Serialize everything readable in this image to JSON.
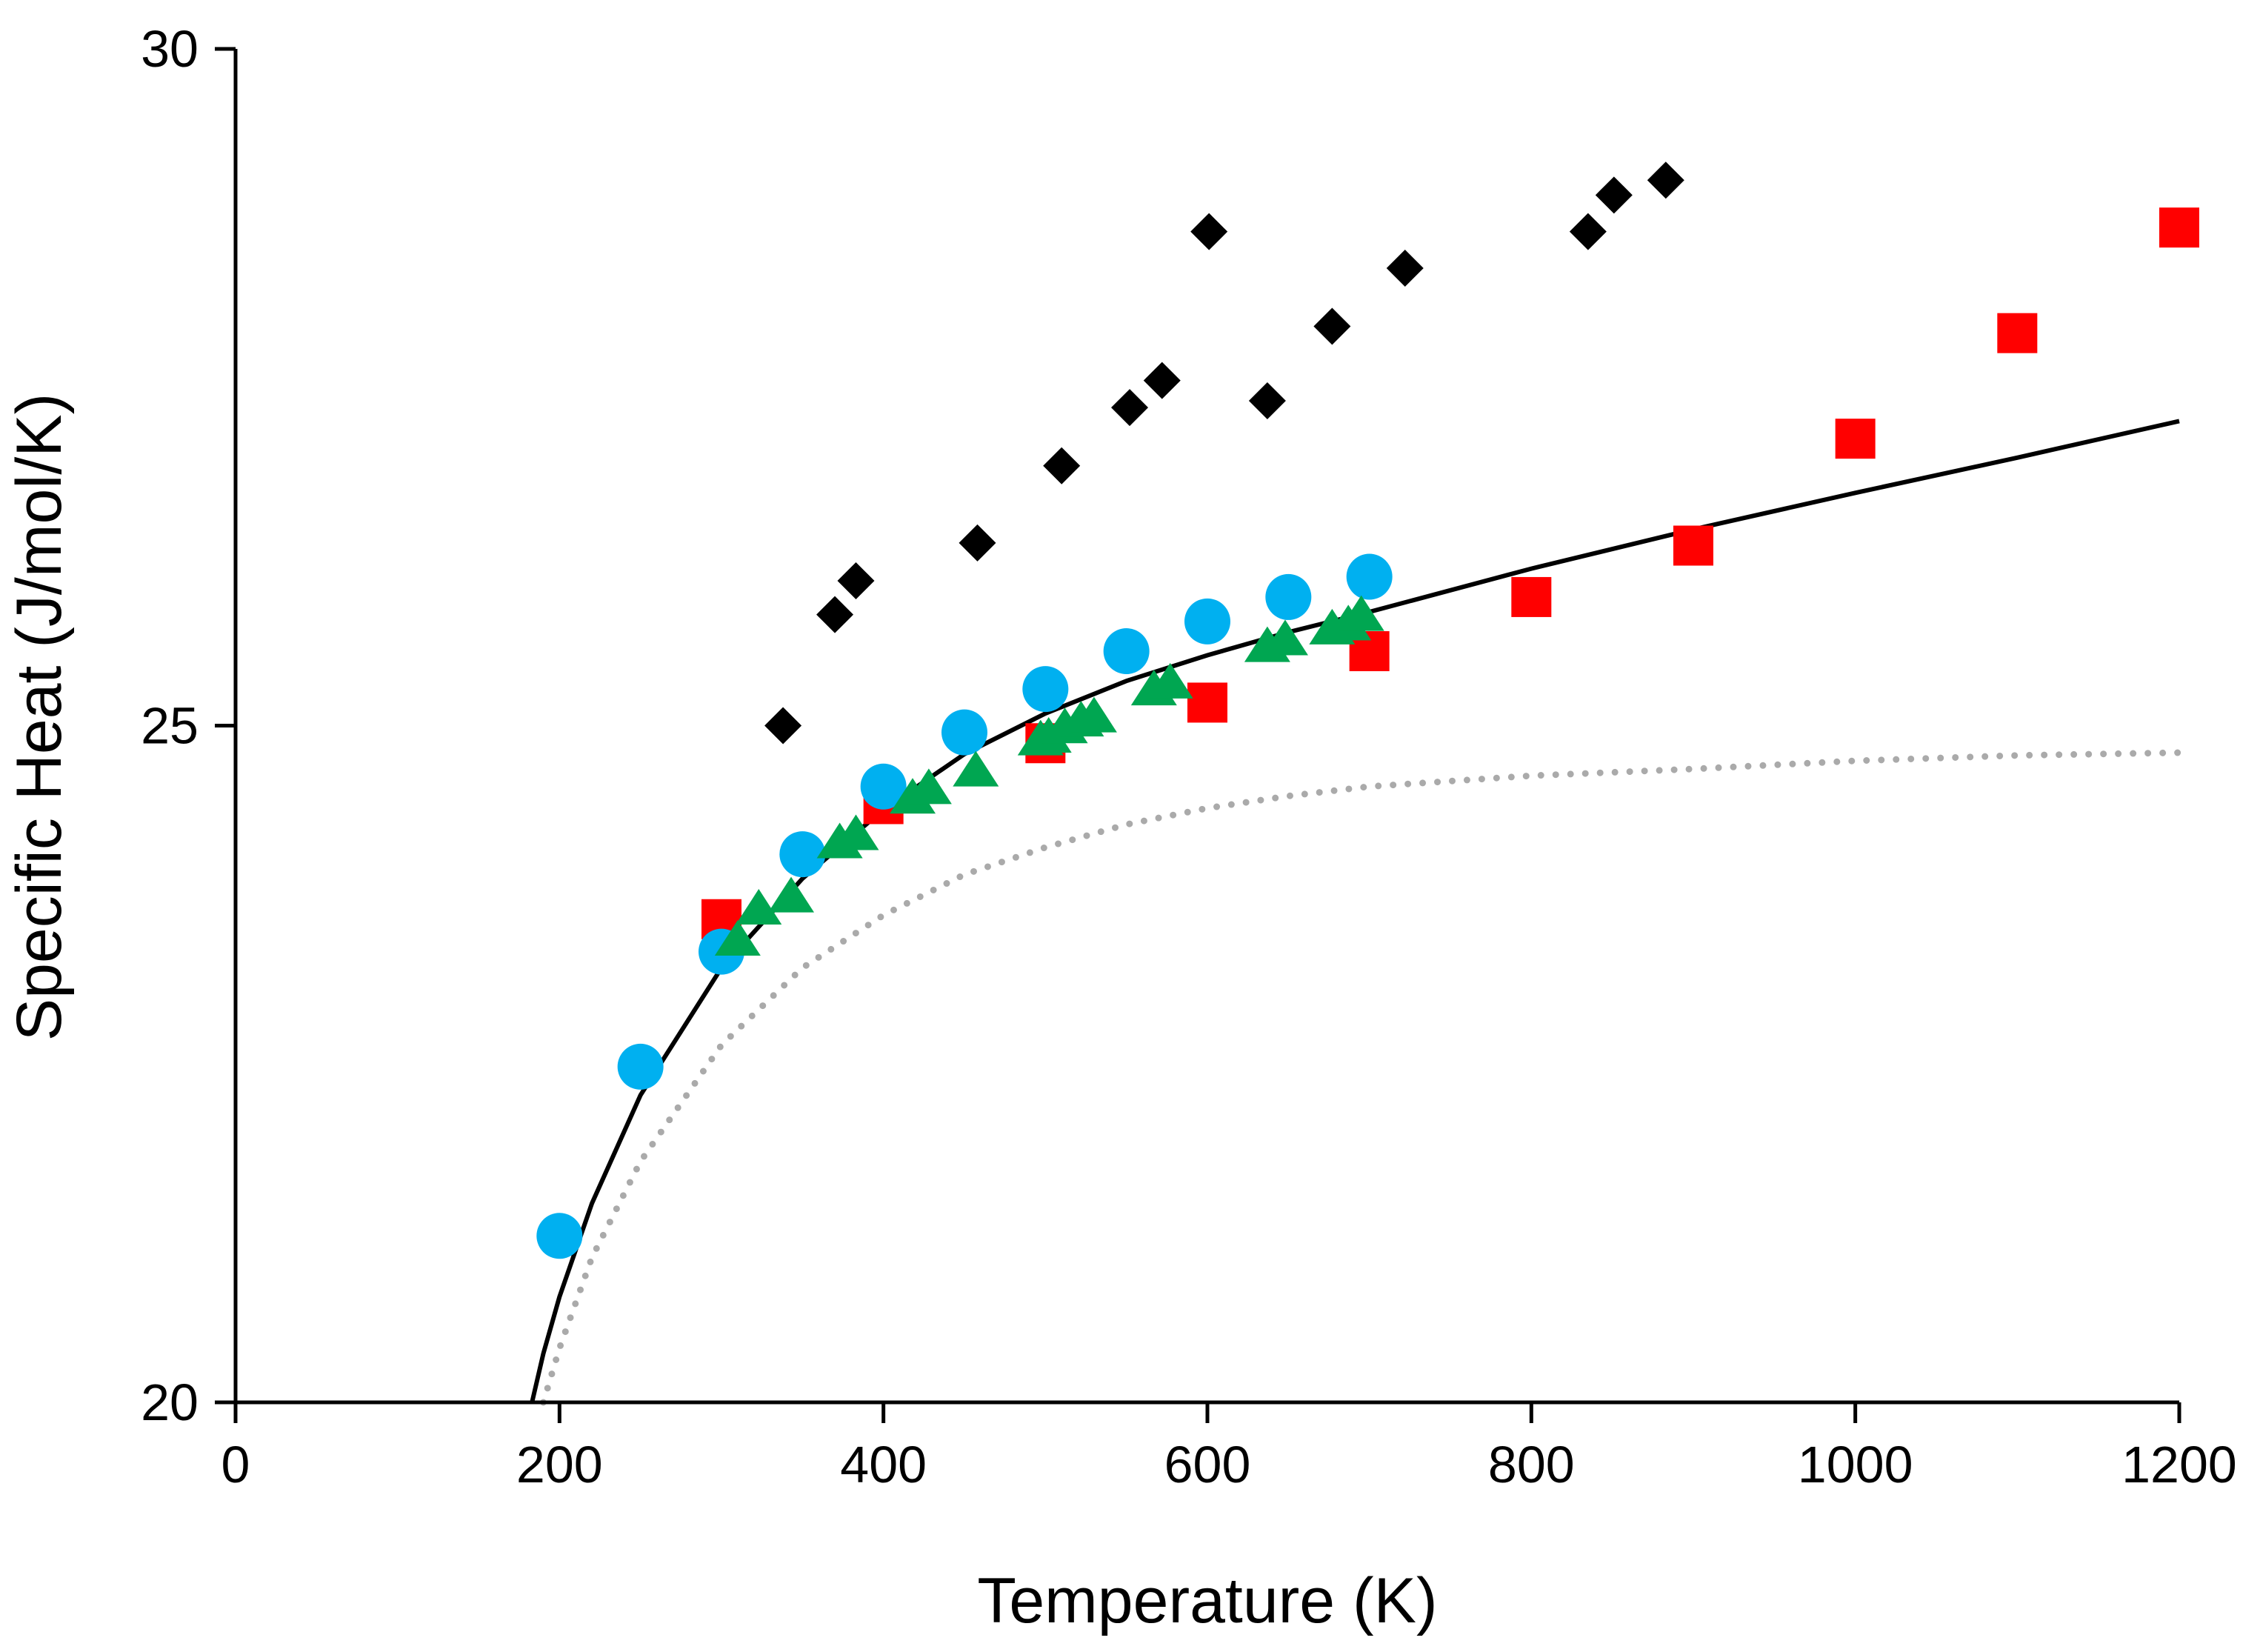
{
  "chart_data": {
    "type": "scatter",
    "title": "",
    "xlabel": "Temperature (K)",
    "ylabel": "Specific Heat  (J/mol/K)",
    "xlim": [
      0,
      1200
    ],
    "ylim": [
      20,
      30
    ],
    "xticks": [
      0,
      200,
      400,
      600,
      800,
      1000,
      1200
    ],
    "yticks": [
      20,
      25,
      30
    ],
    "grid": false,
    "legend": "none",
    "series": [
      {
        "name": "black diamonds",
        "marker": "diamond",
        "color": "#000000",
        "points": [
          [
            338,
            25.0
          ],
          [
            370,
            25.82
          ],
          [
            383,
            26.07
          ],
          [
            458,
            26.35
          ],
          [
            510,
            26.92
          ],
          [
            552,
            27.35
          ],
          [
            572,
            27.55
          ],
          [
            601,
            28.65
          ],
          [
            637,
            27.4
          ],
          [
            677,
            27.95
          ],
          [
            722,
            28.38
          ],
          [
            835,
            28.65
          ],
          [
            851,
            28.92
          ],
          [
            883,
            29.03
          ]
        ]
      },
      {
        "name": "red squares",
        "marker": "square",
        "color": "#ff0000",
        "points": [
          [
            300,
            23.57
          ],
          [
            400,
            24.42
          ],
          [
            500,
            24.87
          ],
          [
            600,
            25.17
          ],
          [
            700,
            25.55
          ],
          [
            800,
            25.95
          ],
          [
            900,
            26.33
          ],
          [
            1000,
            27.12
          ],
          [
            1100,
            27.9
          ],
          [
            1200,
            28.68
          ]
        ]
      },
      {
        "name": "blue circles",
        "marker": "circle",
        "color": "#00b0f0",
        "points": [
          [
            200,
            21.23
          ],
          [
            250,
            22.48
          ],
          [
            300,
            23.33
          ],
          [
            350,
            24.05
          ],
          [
            400,
            24.55
          ],
          [
            450,
            24.95
          ],
          [
            500,
            25.27
          ],
          [
            550,
            25.55
          ],
          [
            600,
            25.77
          ],
          [
            650,
            25.95
          ],
          [
            700,
            26.1
          ]
        ]
      },
      {
        "name": "green triangles",
        "marker": "triangle",
        "color": "#00a651",
        "points": [
          [
            310,
            23.4
          ],
          [
            323,
            23.63
          ],
          [
            343,
            23.72
          ],
          [
            373,
            24.12
          ],
          [
            383,
            24.18
          ],
          [
            418,
            24.45
          ],
          [
            428,
            24.52
          ],
          [
            457,
            24.65
          ],
          [
            497,
            24.88
          ],
          [
            502,
            24.9
          ],
          [
            512,
            24.97
          ],
          [
            522,
            25.02
          ],
          [
            530,
            25.05
          ],
          [
            567,
            25.25
          ],
          [
            577,
            25.3
          ],
          [
            637,
            25.57
          ],
          [
            648,
            25.62
          ],
          [
            677,
            25.7
          ],
          [
            687,
            25.73
          ],
          [
            695,
            25.8
          ]
        ]
      }
    ],
    "curves": [
      {
        "name": "solid fit",
        "style": "solid",
        "color": "#000000",
        "points": [
          [
            183,
            20.0
          ],
          [
            190,
            20.36
          ],
          [
            200,
            20.78
          ],
          [
            220,
            21.47
          ],
          [
            250,
            22.27
          ],
          [
            300,
            23.21
          ],
          [
            350,
            23.87
          ],
          [
            400,
            24.38
          ],
          [
            450,
            24.79
          ],
          [
            500,
            25.09
          ],
          [
            550,
            25.33
          ],
          [
            600,
            25.52
          ],
          [
            650,
            25.69
          ],
          [
            700,
            25.84
          ],
          [
            800,
            26.16
          ],
          [
            900,
            26.45
          ],
          [
            1000,
            26.72
          ],
          [
            1100,
            26.98
          ],
          [
            1200,
            27.25
          ]
        ]
      },
      {
        "name": "dotted model",
        "style": "dotted",
        "color": "#aaaaaa",
        "points": [
          [
            190,
            20.0
          ],
          [
            200,
            20.4
          ],
          [
            220,
            21.07
          ],
          [
            250,
            21.78
          ],
          [
            300,
            22.64
          ],
          [
            350,
            23.21
          ],
          [
            400,
            23.6
          ],
          [
            450,
            23.9
          ],
          [
            500,
            24.1
          ],
          [
            550,
            24.27
          ],
          [
            600,
            24.39
          ],
          [
            650,
            24.48
          ],
          [
            700,
            24.55
          ],
          [
            800,
            24.63
          ],
          [
            900,
            24.68
          ],
          [
            1000,
            24.74
          ],
          [
            1100,
            24.78
          ],
          [
            1200,
            24.8
          ]
        ]
      }
    ]
  }
}
